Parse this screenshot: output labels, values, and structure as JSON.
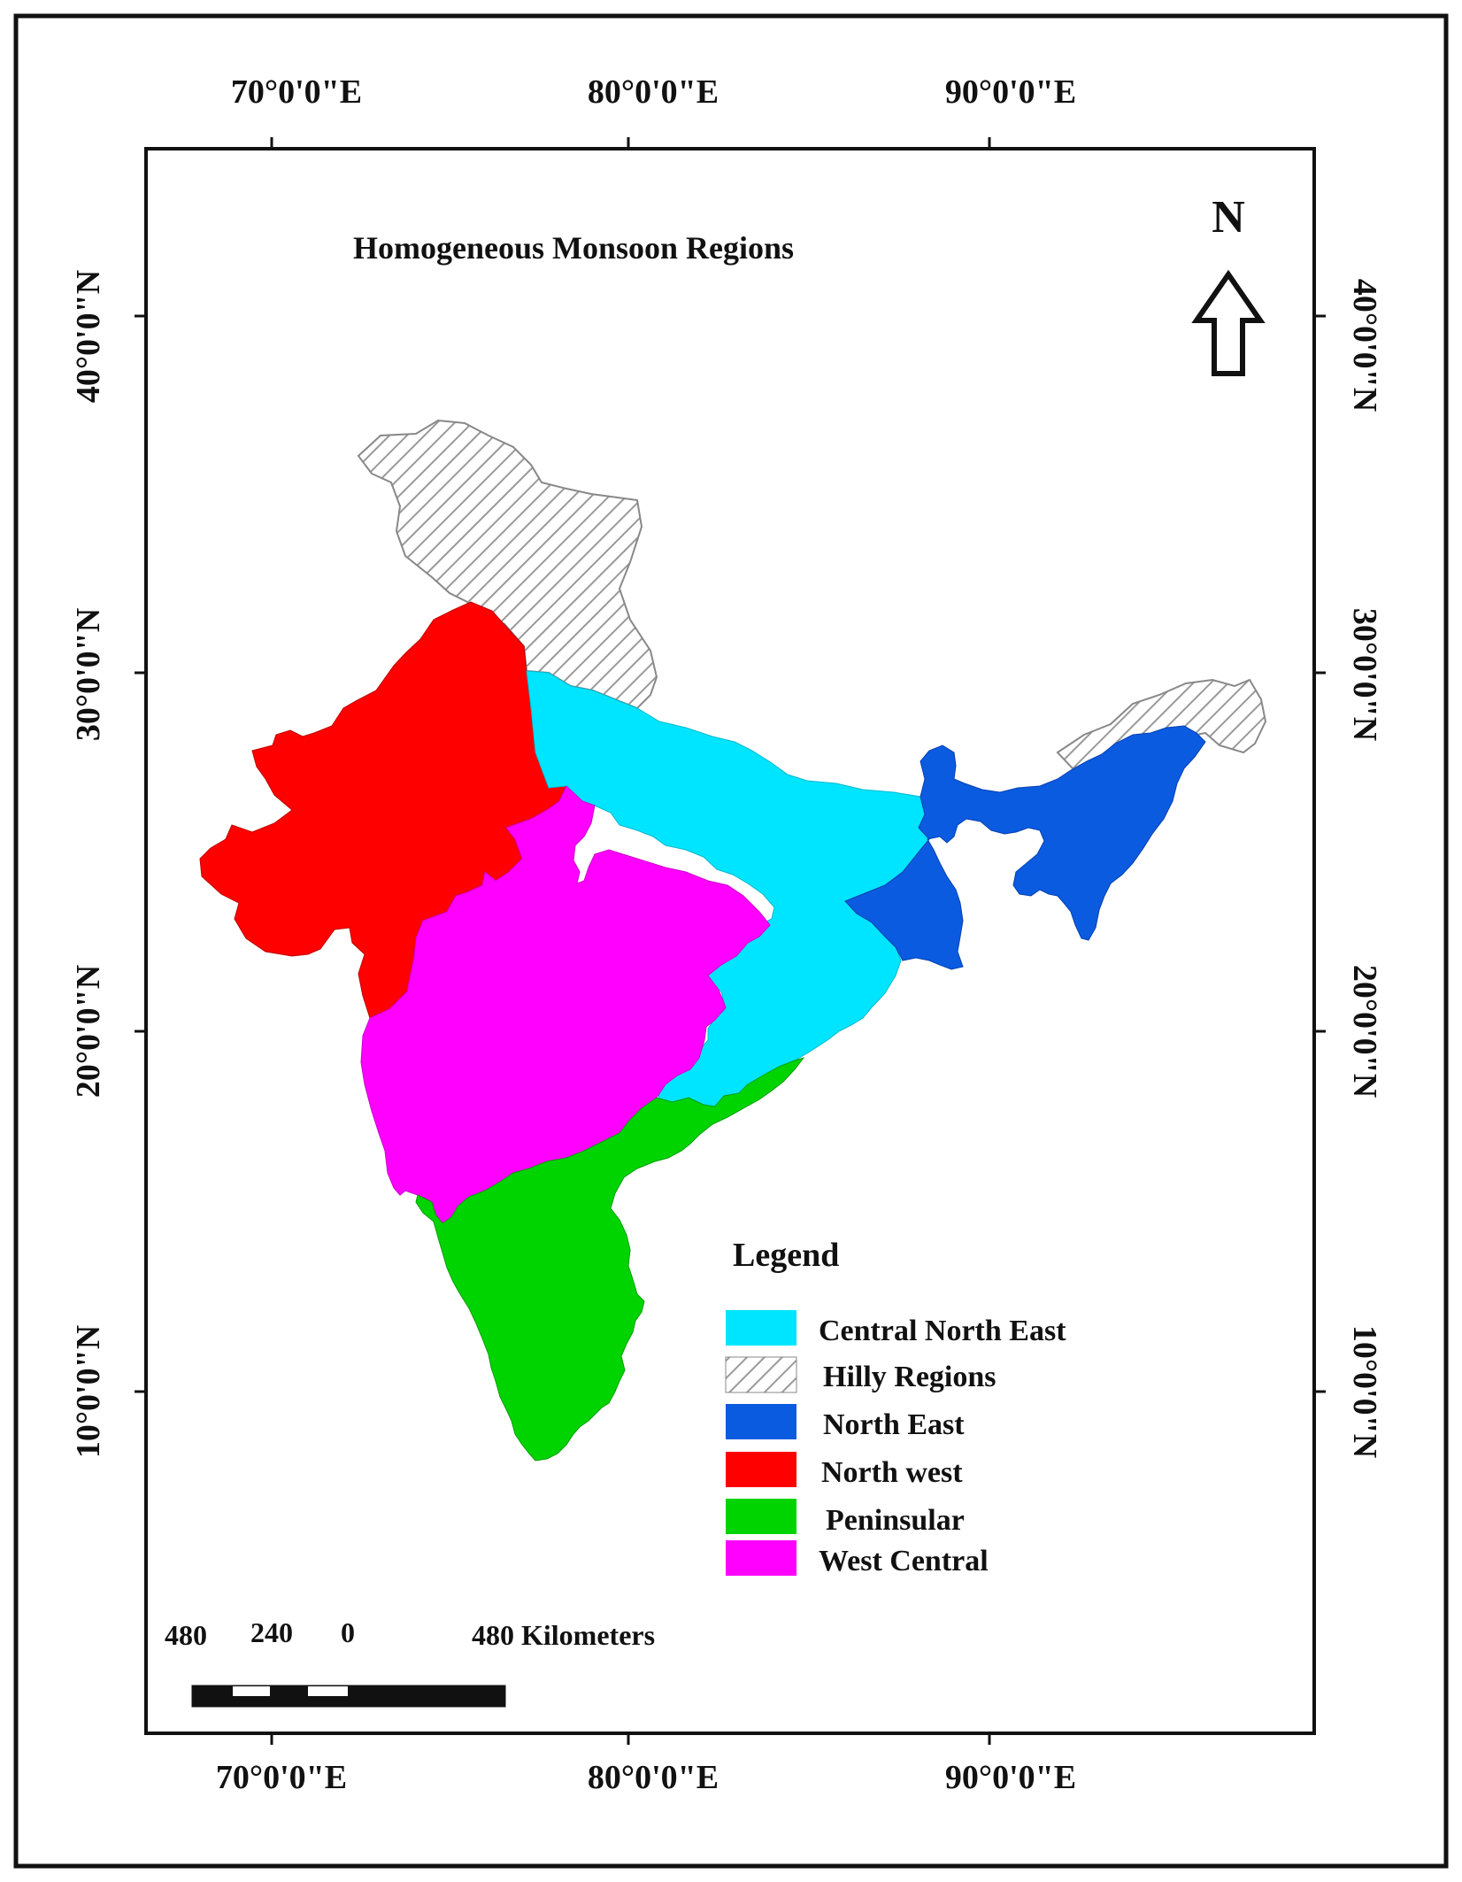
{
  "map": {
    "title": "Homogeneous Monsoon Regions",
    "north_label": "N",
    "longitude_labels": [
      "70°0'0\"E",
      "80°0'0\"E",
      "90°0'0\"E"
    ],
    "latitude_labels": [
      "40°0'0\"N",
      "30°0'0\"N",
      "20°0'0\"N",
      "10°0'0\"N"
    ],
    "legend": {
      "title": "Legend",
      "items": [
        {
          "label": "Central North East",
          "color": "#00e5ff",
          "pattern": "solid"
        },
        {
          "label": "Hilly Regions",
          "color": "#bdbdbd",
          "pattern": "hatch"
        },
        {
          "label": "North East",
          "color": "#0a5be0",
          "pattern": "solid"
        },
        {
          "label": "North west",
          "color": "#ff0000",
          "pattern": "solid"
        },
        {
          "label": "Peninsular",
          "color": "#00d400",
          "pattern": "solid"
        },
        {
          "label": "West Central",
          "color": "#ff00ff",
          "pattern": "solid"
        }
      ]
    },
    "scale_bar": {
      "labels": [
        "480",
        "240",
        "0",
        "480 Kilometers"
      ]
    }
  }
}
